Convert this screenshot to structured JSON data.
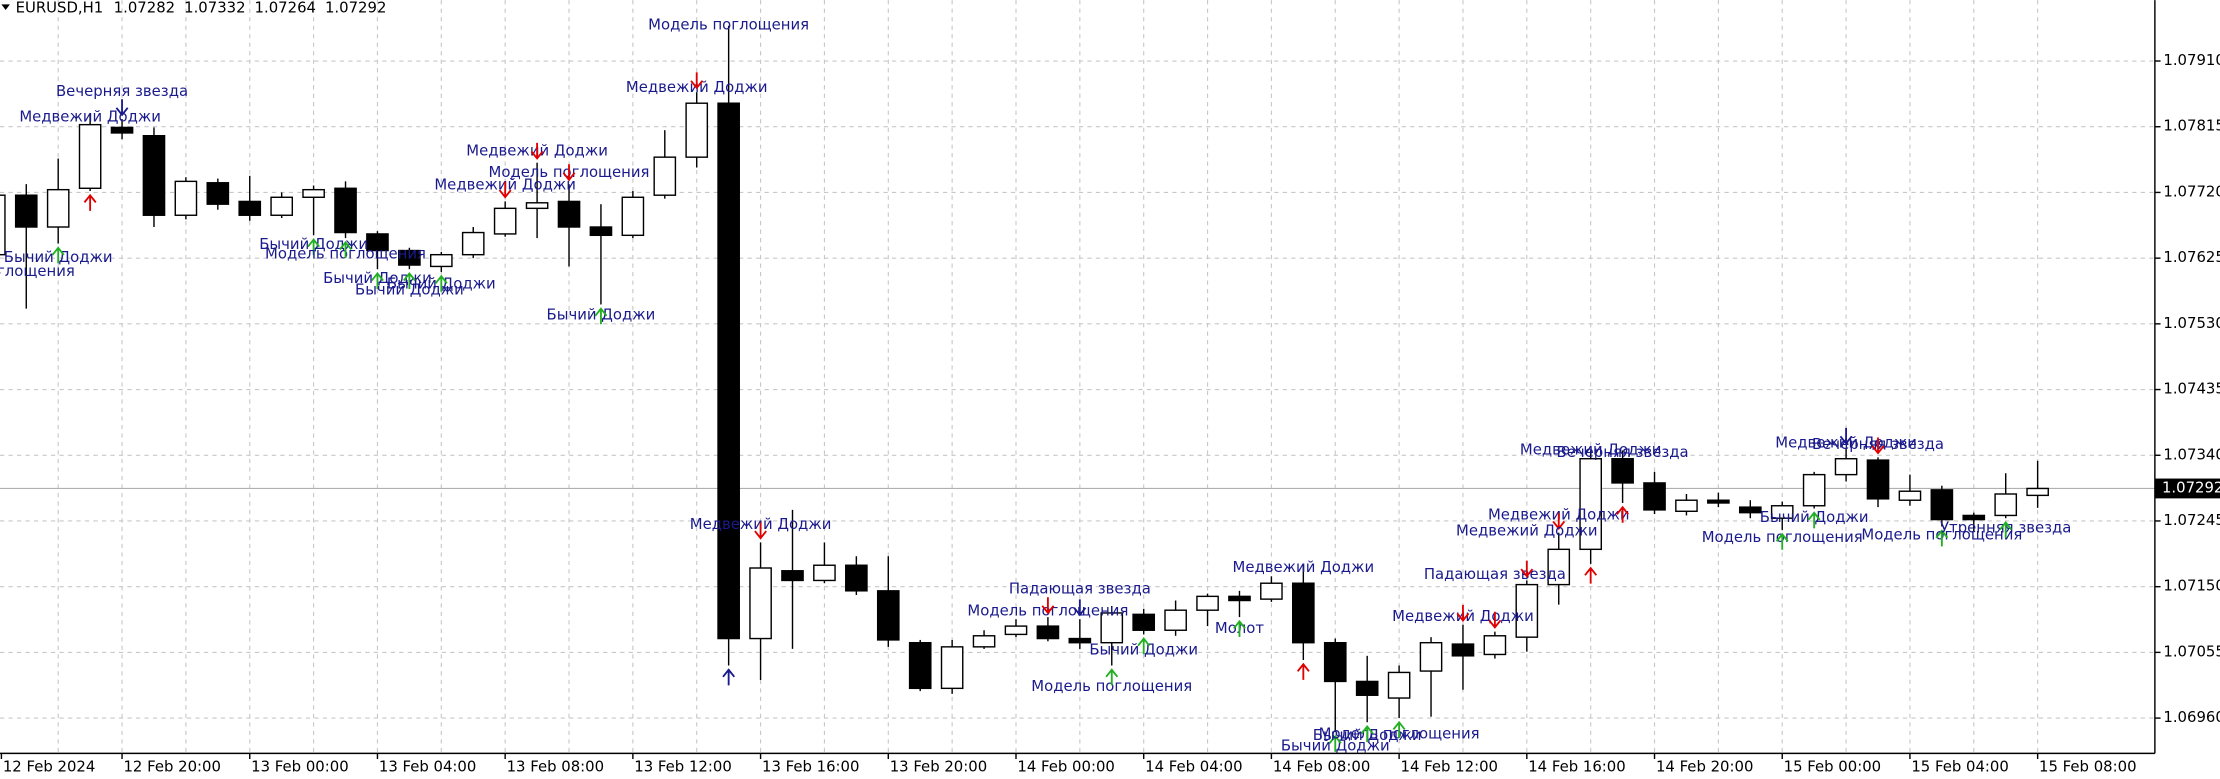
{
  "chart_data": {
    "type": "candlestick",
    "symbol": "EURUSD,H1",
    "ohlc": [
      1.07282,
      1.07332,
      1.07264,
      1.07292
    ],
    "current_price": 1.07292,
    "categories": [
      "12 Feb 2024",
      null,
      null,
      null,
      "12 Feb 20:00",
      null,
      null,
      null,
      "13 Feb 00:00",
      null,
      null,
      null,
      "13 Feb 04:00",
      null,
      null,
      null,
      "13 Feb 08:00",
      null,
      null,
      null,
      "13 Feb 12:00",
      null,
      null,
      null,
      "13 Feb 16:00",
      null,
      null,
      null,
      "13 Feb 20:00",
      null,
      null,
      null,
      "14 Feb 00:00",
      null,
      null,
      null,
      "14 Feb 04:00",
      null,
      null,
      null,
      "14 Feb 08:00",
      null,
      null,
      null,
      "14 Feb 12:00",
      null,
      null,
      null,
      "14 Feb 16:00",
      null,
      null,
      null,
      "14 Feb 20:00",
      null,
      null,
      null,
      "15 Feb 00:00",
      null,
      null,
      null,
      "15 Feb 04:00",
      null,
      null,
      null,
      "15 Feb 08:00"
    ],
    "open": [
      1.0763,
      1.07716,
      1.0767,
      1.07726,
      1.07814,
      1.07802,
      1.07687,
      1.07734,
      1.07707,
      1.07687,
      1.07713,
      1.07726,
      1.0766,
      1.07636,
      1.07613,
      1.0763,
      1.0766,
      1.07697,
      1.07707,
      1.0767,
      1.07658,
      1.07716,
      1.07771,
      1.07849,
      1.07075,
      1.07173,
      1.07159,
      1.07181,
      1.07144,
      1.07069,
      1.07003,
      1.07063,
      1.07081,
      1.07093,
      1.07075,
      1.07069,
      1.0711,
      1.07087,
      1.07116,
      1.07136,
      1.07132,
      1.07155,
      1.07069,
      1.07013,
      1.06989,
      1.07028,
      1.07067,
      1.07052,
      1.07077,
      1.07153,
      1.07204,
      1.07335,
      1.073,
      1.07259,
      1.07275,
      1.07265,
      1.07249,
      1.07267,
      1.07312,
      1.07333,
      1.07275,
      1.0729,
      1.07253,
      1.07253,
      1.07282
    ],
    "high": [
      1.07732,
      1.07732,
      1.07769,
      1.07834,
      1.07826,
      1.07814,
      1.07742,
      1.0774,
      1.07744,
      1.0772,
      1.0773,
      1.07736,
      1.07664,
      1.0764,
      1.07634,
      1.0767,
      1.07707,
      1.07763,
      1.07732,
      1.07703,
      1.07722,
      1.0781,
      1.07865,
      1.07961,
      1.07214,
      1.07261,
      1.07214,
      1.07194,
      1.07194,
      1.07073,
      1.07073,
      1.07087,
      1.07103,
      1.07106,
      1.07103,
      1.07122,
      1.07118,
      1.0713,
      1.0714,
      1.07144,
      1.07165,
      1.07181,
      1.07075,
      1.0705,
      1.07036,
      1.07077,
      1.07095,
      1.07085,
      1.07159,
      1.07228,
      1.07347,
      1.07347,
      1.07316,
      1.07284,
      1.07286,
      1.07275,
      1.07273,
      1.07316,
      1.07351,
      1.07337,
      1.07312,
      1.07296,
      1.07257,
      1.07314,
      1.07332
    ],
    "low": [
      1.07619,
      1.07552,
      1.07646,
      1.07722,
      1.07797,
      1.0767,
      1.07681,
      1.07695,
      1.07679,
      1.07683,
      1.07658,
      1.07654,
      1.07609,
      1.07609,
      1.07605,
      1.07625,
      1.07656,
      1.07654,
      1.07613,
      1.07558,
      1.07654,
      1.07711,
      1.07756,
      1.07036,
      1.07015,
      1.0706,
      1.07155,
      1.07138,
      1.07063,
      1.06999,
      1.06995,
      1.0706,
      1.07077,
      1.07071,
      1.0706,
      1.07036,
      1.07081,
      1.07079,
      1.07093,
      1.07106,
      1.07128,
      1.07044,
      1.0694,
      1.06954,
      1.0696,
      1.06962,
      1.07001,
      1.07046,
      1.07056,
      1.07124,
      1.07183,
      1.07271,
      1.07255,
      1.07253,
      1.07265,
      1.07249,
      1.07232,
      1.07263,
      1.07302,
      1.07265,
      1.07267,
      1.07237,
      1.0723,
      1.07249,
      1.07264
    ],
    "close": [
      1.07716,
      1.0767,
      1.07724,
      1.07818,
      1.07806,
      1.07687,
      1.07736,
      1.07703,
      1.07687,
      1.07713,
      1.07724,
      1.07662,
      1.07636,
      1.07615,
      1.0763,
      1.07662,
      1.07697,
      1.07705,
      1.0767,
      1.07658,
      1.07713,
      1.07771,
      1.07849,
      1.07075,
      1.07177,
      1.07159,
      1.07181,
      1.07144,
      1.07073,
      1.07003,
      1.07063,
      1.07079,
      1.07093,
      1.07075,
      1.07069,
      1.07112,
      1.07087,
      1.07116,
      1.07136,
      1.0713,
      1.07155,
      1.07069,
      1.07013,
      1.06993,
      1.07026,
      1.07069,
      1.0705,
      1.07079,
      1.07153,
      1.07204,
      1.07335,
      1.073,
      1.07261,
      1.07275,
      1.07271,
      1.07257,
      1.07267,
      1.07312,
      1.07335,
      1.07277,
      1.07288,
      1.07247,
      1.07247,
      1.07284,
      1.07292
    ],
    "ylim": [
      1.06909,
      1.07998
    ],
    "yticks": [
      {
        "value": 1.0791,
        "label": "1.07910"
      },
      1.07815,
      {
        "value": 1.0772,
        "label": "1.07720"
      },
      1.07625,
      {
        "value": 1.0753,
        "label": "1.07530"
      },
      1.07435,
      {
        "value": 1.0734,
        "label": "1.07340"
      },
      1.07245,
      {
        "value": 1.0715,
        "label": "1.07150"
      },
      1.07055,
      {
        "value": 1.0696,
        "label": "1.06960"
      }
    ],
    "grid": true,
    "bull_color": "#ffffff",
    "bear_color": "#000000",
    "annotations": [
      {
        "text": "Модель поглощения",
        "x": 23,
        "y": 1.07961,
        "arrow_color": "#1a1a8c"
      },
      {
        "text": "Медвежий Доджи",
        "x": 22,
        "y": 1.07871,
        "arrow_color": "#e00000"
      },
      {
        "text": "Вечерняя звезда",
        "x": 4,
        "y": 1.07865,
        "arrow_color": "#1a1a8c"
      },
      {
        "text": "Медвежий Доджи",
        "x": 3,
        "y": 1.07828,
        "arrow_color": "#e00000"
      },
      {
        "text": "Медвежий Доджи",
        "x": 17,
        "y": 1.07779,
        "arrow_color": "#e00000"
      },
      {
        "text": "Модель поглощения",
        "x": 18,
        "y": 1.07748,
        "arrow_color": "#e00000"
      },
      {
        "text": "Медвежий Доджи",
        "x": 16,
        "y": 1.0773,
        "arrow_color": "#e00000"
      },
      {
        "text": "Бычий Доджи",
        "x": 2,
        "y": 1.07625,
        "arrow_color": "#22b022"
      },
      {
        "text": "Модель поглощения",
        "x": 0,
        "y": 1.07605,
        "arrow_color": "#1a1a8c"
      },
      {
        "text": "Бычий Доджи",
        "x": 10,
        "y": 1.07644,
        "arrow_color": "#22b022"
      },
      {
        "text": "Модель поглощения",
        "x": 11,
        "y": 1.0763,
        "arrow_color": "#22b022"
      },
      {
        "text": "Бычий Доджи",
        "x": 12,
        "y": 1.07595,
        "arrow_color": "#22b022"
      },
      {
        "text": "Бычий Доджи",
        "x": 13,
        "y": 1.07578,
        "arrow_color": "#22b022"
      },
      {
        "text": "Бычий Доджи",
        "x": 14,
        "y": 1.07587,
        "arrow_color": "#22b022"
      },
      {
        "text": "Бычий Доджи",
        "x": 19,
        "y": 1.07542,
        "arrow_color": "#22b022"
      },
      {
        "text": "Медвежий Доджи",
        "x": 24,
        "y": 1.07239,
        "arrow_color": "#e00000"
      },
      {
        "text": "Падающая звезда",
        "x": 34,
        "y": 1.07146,
        "arrow_color": "#1a1a8c"
      },
      {
        "text": "Модель поглощения",
        "x": 33,
        "y": 1.07114,
        "arrow_color": "#e00000"
      },
      {
        "text": "Бычий Доджи",
        "x": 36,
        "y": 1.07058,
        "arrow_color": "#22b022"
      },
      {
        "text": "Модель поглощения",
        "x": 35,
        "y": 1.07005,
        "arrow_color": "#22b022"
      },
      {
        "text": "Молот",
        "x": 39,
        "y": 1.07089,
        "arrow_color": "#22b022"
      },
      {
        "text": "Медвежий Доджи",
        "x": 41,
        "y": 1.07177,
        "arrow_color": "#e00000"
      },
      {
        "text": "Медвежий Доджи",
        "x": 46,
        "y": 1.07106,
        "arrow_color": "#e00000"
      },
      {
        "text": "Падающая звезда",
        "x": 47,
        "y": 1.07167,
        "arrow_color": "#e00000"
      },
      {
        "text": "Медвежий Доджи",
        "x": 49,
        "y": 1.07253,
        "arrow_color": "#e00000"
      },
      {
        "text": "Медвежий Доджи",
        "x": 48,
        "y": 1.0723,
        "arrow_color": "#e00000"
      },
      {
        "text": "Медвежий Доджи",
        "x": 50,
        "y": 1.07347,
        "arrow_color": "#e00000"
      },
      {
        "text": "Вечерняя звезда",
        "x": 51,
        "y": 1.07343,
        "arrow_color": "#e00000"
      },
      {
        "text": "Бычий Доджи",
        "x": 57,
        "y": 1.07249,
        "arrow_color": "#22b022"
      },
      {
        "text": "Модель поглощения",
        "x": 56,
        "y": 1.0722,
        "arrow_color": "#22b022"
      },
      {
        "text": "Медвежий Доджи",
        "x": 58,
        "y": 1.07357,
        "arrow_color": "#1a1a8c"
      },
      {
        "text": "Вечерняя звезда",
        "x": 59,
        "y": 1.07355,
        "arrow_color": "#e00000"
      },
      {
        "text": "Модель поглощения",
        "x": 61,
        "y": 1.07224,
        "arrow_color": "#22b022"
      },
      {
        "text": "Утренняя звезда",
        "x": 63,
        "y": 1.07234,
        "arrow_color": "#22b022"
      },
      {
        "text": "Бычий Доджи",
        "x": 42,
        "y": 1.06919,
        "arrow_color": "#22b022"
      },
      {
        "text": "Модель поглощения",
        "x": 44,
        "y": 1.06936,
        "arrow_color": "#22b022"
      },
      {
        "text": "Бычий Доджи",
        "x": 43,
        "y": 1.06934,
        "arrow_color": "#22b022"
      }
    ]
  }
}
